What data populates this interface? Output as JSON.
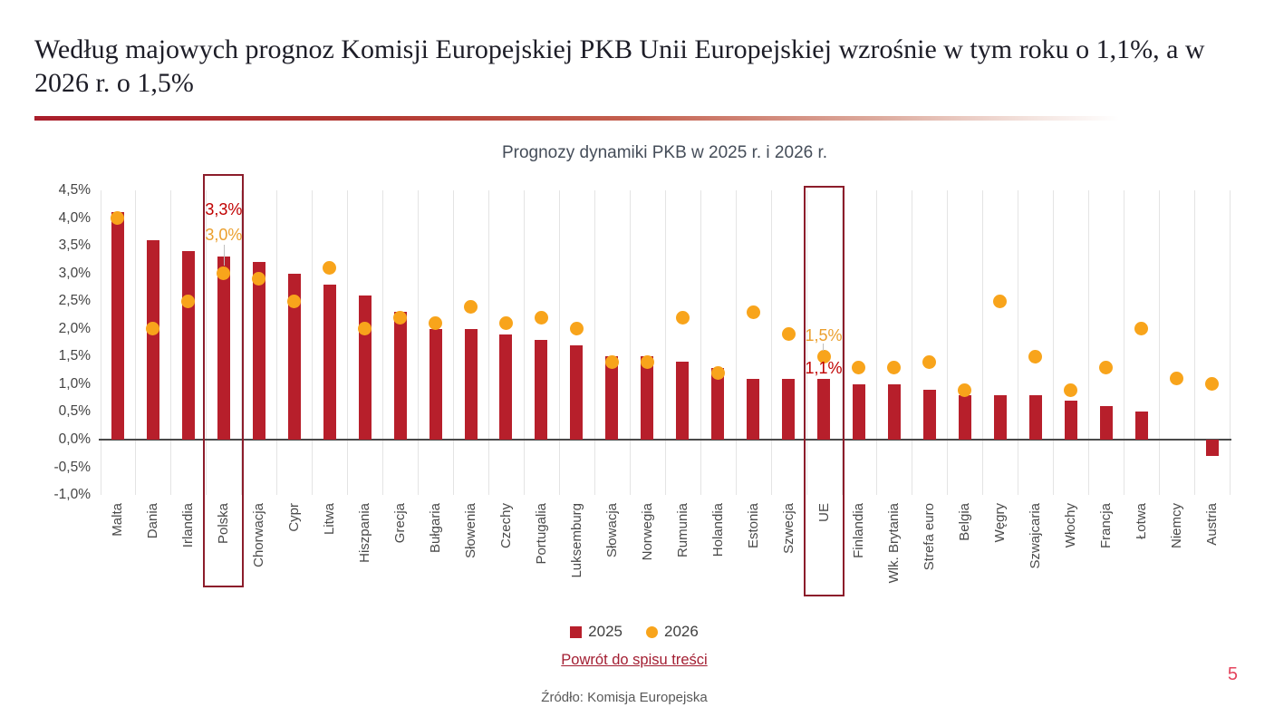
{
  "slide": {
    "title": "Według majowych prognoz Komisji Europejskiej PKB Unii Europejskiej wzrośnie w tym roku o 1,1%, a w 2026 r. o 1,5%",
    "page_number": "5"
  },
  "chart_data": {
    "type": "bar",
    "title": "Prognozy dynamiki PKB w 2025 r. i 2026 r.",
    "categories": [
      "Malta",
      "Dania",
      "Irlandia",
      "Polska",
      "Chorwacja",
      "Cypr",
      "Litwa",
      "Hiszpania",
      "Grecja",
      "Bułgaria",
      "Słowenia",
      "Czechy",
      "Portugalia",
      "Luksemburg",
      "Słowacja",
      "Norwegia",
      "Rumunia",
      "Holandia",
      "Estonia",
      "Szwecja",
      "UE",
      "Finlandia",
      "Wlk. Brytania",
      "Strefa euro",
      "Belgia",
      "Węgry",
      "Szwajcaria",
      "Włochy",
      "Francja",
      "Łotwa",
      "Niemcy",
      "Austria"
    ],
    "series": [
      {
        "name": "2025",
        "style": "bar",
        "color": "#b71f2b",
        "values": [
          4.1,
          3.6,
          3.4,
          3.3,
          3.2,
          3.0,
          2.8,
          2.6,
          2.3,
          2.0,
          2.0,
          1.9,
          1.8,
          1.7,
          1.5,
          1.5,
          1.4,
          1.3,
          1.1,
          1.1,
          1.1,
          1.0,
          1.0,
          0.9,
          0.8,
          0.8,
          0.8,
          0.7,
          0.6,
          0.5,
          0.0,
          -0.3
        ]
      },
      {
        "name": "2026",
        "style": "scatter",
        "color": "#f8a41b",
        "values": [
          4.0,
          2.0,
          2.5,
          3.0,
          2.9,
          2.5,
          3.1,
          2.0,
          2.2,
          2.1,
          2.4,
          2.1,
          2.2,
          2.0,
          1.4,
          1.4,
          2.2,
          1.2,
          2.3,
          1.9,
          1.5,
          1.3,
          1.3,
          1.4,
          0.9,
          2.5,
          1.5,
          0.9,
          1.3,
          2.0,
          1.1,
          1.0
        ]
      }
    ],
    "ylim": [
      -1.0,
      4.5
    ],
    "ytick_labels": [
      "4,5%",
      "4,0%",
      "3,5%",
      "3,0%",
      "2,5%",
      "2,0%",
      "1,5%",
      "1,0%",
      "0,5%",
      "0,0%",
      "-0,5%",
      "-1,0%"
    ],
    "ytick_values": [
      4.5,
      4.0,
      3.5,
      3.0,
      2.5,
      2.0,
      1.5,
      1.0,
      0.5,
      0.0,
      -0.5,
      -1.0
    ],
    "grid": "vertical",
    "legend_position": "bottom",
    "highlighted_categories": [
      "Polska",
      "UE"
    ],
    "annotations": [
      {
        "category": "Polska",
        "items": [
          {
            "text": "3,3%",
            "series": "2025"
          },
          {
            "text": "3,0%",
            "series": "2026"
          }
        ]
      },
      {
        "category": "UE",
        "items": [
          {
            "text": "1,5%",
            "series": "2026"
          },
          {
            "text": "1,1%",
            "series": "2025"
          }
        ]
      }
    ]
  },
  "legend": {
    "items": [
      {
        "label": "2025"
      },
      {
        "label": "2026"
      }
    ]
  },
  "footer": {
    "link_label": "Powrót do spisu treści",
    "source": "Źródło: Komisja Europejska"
  }
}
